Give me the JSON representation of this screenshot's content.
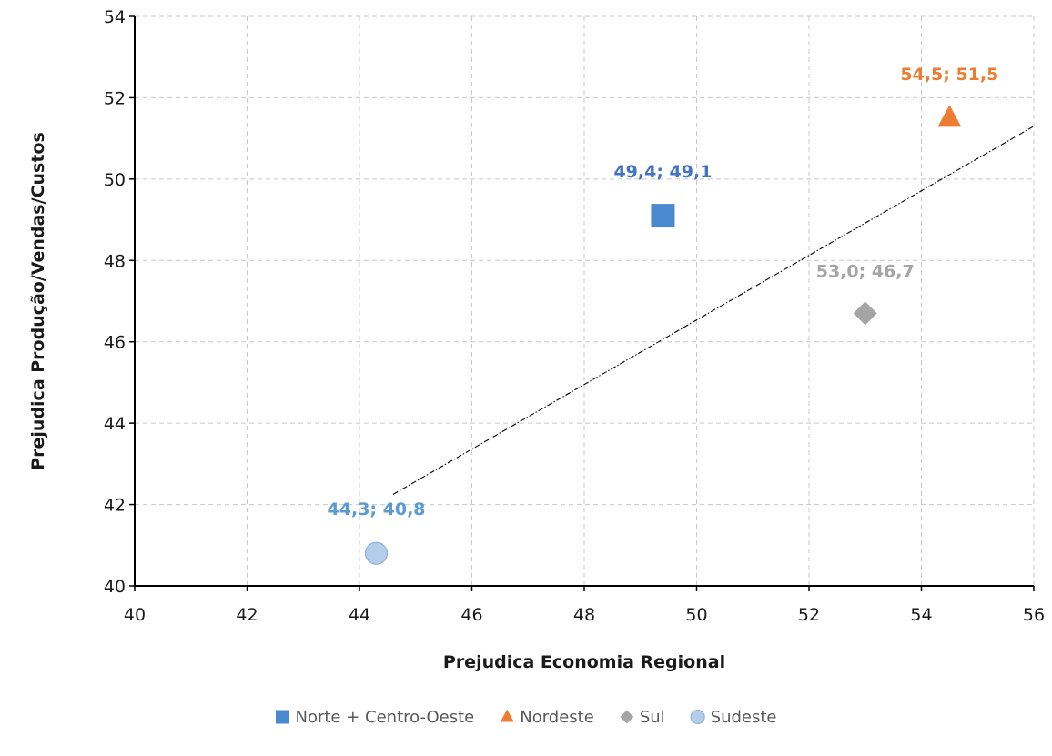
{
  "chart_data": {
    "type": "scatter",
    "title": "",
    "xlabel": "Prejudica Economia Regional",
    "ylabel": "Prejudica Produção/Vendas/Custos",
    "xlim": [
      40,
      56
    ],
    "ylim": [
      40,
      54
    ],
    "xticks": [
      "40",
      "42",
      "44",
      "46",
      "48",
      "50",
      "52",
      "54",
      "56"
    ],
    "yticks": [
      "40",
      "42",
      "44",
      "46",
      "48",
      "50",
      "52",
      "54"
    ],
    "grid": true,
    "legend_position": "bottom",
    "series": [
      {
        "name": "Norte + Centro-Oeste",
        "marker": "square",
        "color": "#4a88cf",
        "x": [
          49.4
        ],
        "y": [
          49.1
        ],
        "labels": [
          "49,4; 49,1"
        ],
        "label_color": "#4472c4"
      },
      {
        "name": "Nordeste",
        "marker": "triangle",
        "color": "#ed7d31",
        "x": [
          54.5
        ],
        "y": [
          51.5
        ],
        "labels": [
          "54,5; 51,5"
        ],
        "label_color": "#ed7d31"
      },
      {
        "name": "Sul",
        "marker": "diamond",
        "color": "#a5a5a5",
        "x": [
          53.0
        ],
        "y": [
          46.7
        ],
        "labels": [
          "53,0; 46,7"
        ],
        "label_color": "#a5a5a5"
      },
      {
        "name": "Sudeste",
        "marker": "circle",
        "color": "#b4cdeb",
        "x": [
          44.3
        ],
        "y": [
          40.8
        ],
        "labels": [
          "44,3; 40,8"
        ],
        "label_color": "#5b9bd5"
      }
    ],
    "trendline": {
      "style": "dash-dot",
      "color": "#000000",
      "x": [
        44.6,
        56.0
      ],
      "y": [
        42.25,
        51.3
      ]
    }
  }
}
